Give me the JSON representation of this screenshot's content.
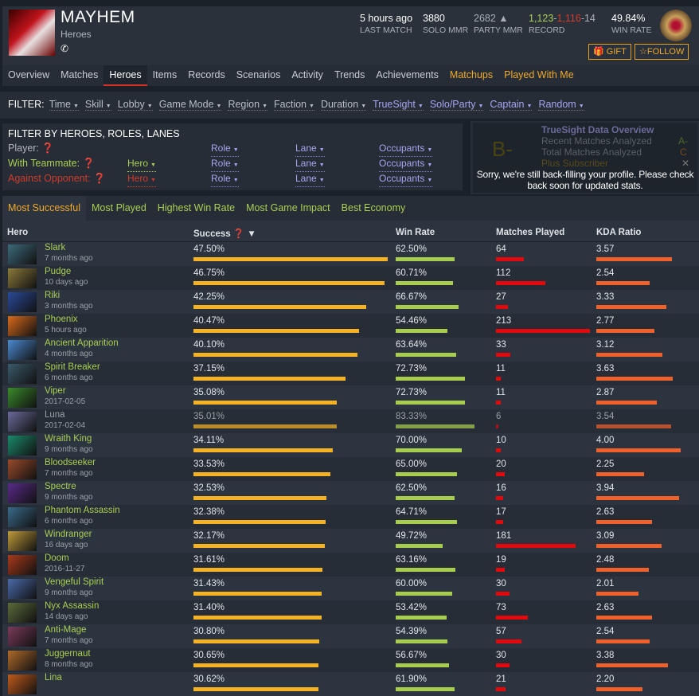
{
  "profile": {
    "name": "MAYHEM",
    "section": "Heroes",
    "phone_icon": "phone-icon"
  },
  "stats": {
    "last_match": "5 hours ago",
    "last_match_label": "LAST MATCH",
    "solo_mmr": "3880",
    "solo_mmr_label": "SOLO MMR",
    "party_mmr": "2682",
    "party_mmr_label": "PARTY MMR",
    "wins": "1,123",
    "losses": "1,116",
    "abandons": "14",
    "record_label": "RECORD",
    "win_rate": "49.84%",
    "win_rate_label": "WIN RATE"
  },
  "buttons": {
    "gift": "GIFT",
    "follow": "FOLLOW"
  },
  "nav": [
    "Overview",
    "Matches",
    "Heroes",
    "Items",
    "Records",
    "Scenarios",
    "Activity",
    "Trends",
    "Achievements",
    "Matchups",
    "Played With Me"
  ],
  "filter": {
    "label": "FILTER:",
    "items": [
      "Time",
      "Skill",
      "Lobby",
      "Game Mode",
      "Region",
      "Faction",
      "Duration",
      "TrueSight",
      "Solo/Party",
      "Captain",
      "Random"
    ]
  },
  "hero_filter": {
    "title": "FILTER BY HEROES, ROLES, LANES",
    "player": "Player:",
    "teammate": "With Teammate:",
    "opponent": "Against Opponent:",
    "hero": "Hero",
    "role": "Role",
    "lane": "Lane",
    "occupants": "Occupants"
  },
  "truesight": {
    "title": "TrueSight Data Overview",
    "grade": "B-",
    "recent": "Recent Matches Analyzed",
    "recent_grade": "A-",
    "total": "Total Matches Analyzed",
    "total_grade": "C",
    "plus": "Plus Subscriber",
    "message": "Sorry, we're still back-filling your profile. Please check back soon for updated stats."
  },
  "tabs": [
    "Most Successful",
    "Most Played",
    "Highest Win Rate",
    "Most Game Impact",
    "Best Economy"
  ],
  "columns": {
    "hero": "Hero",
    "success": "Success",
    "win_rate": "Win Rate",
    "matches": "Matches Played",
    "kda": "KDA Ratio"
  },
  "colors": {
    "success_bar": "#f5b324",
    "winrate_bar": "#a6cd4e",
    "matches_bar": "#e3080c",
    "kda_bar": "#f0602a",
    "hero_link": "#a9cf54",
    "accent": "#f0a92a"
  },
  "heroes": [
    {
      "name": "Slark",
      "last": "7 months ago",
      "success": 47.5,
      "win_rate": 62.5,
      "matches": 64,
      "kda": 3.57,
      "portrait_color": "#3d6a7a"
    },
    {
      "name": "Pudge",
      "last": "10 days ago",
      "success": 46.75,
      "win_rate": 60.71,
      "matches": 112,
      "kda": 2.54,
      "portrait_color": "#8a7a3a"
    },
    {
      "name": "Riki",
      "last": "3 months ago",
      "success": 42.25,
      "win_rate": 66.67,
      "matches": 27,
      "kda": 3.33,
      "portrait_color": "#2a4a9a"
    },
    {
      "name": "Phoenix",
      "last": "5 hours ago",
      "success": 40.47,
      "win_rate": 54.46,
      "matches": 213,
      "kda": 2.77,
      "portrait_color": "#d86a1a"
    },
    {
      "name": "Ancient Apparition",
      "last": "4 months ago",
      "success": 40.1,
      "win_rate": 63.64,
      "matches": 33,
      "kda": 3.12,
      "portrait_color": "#4a8ad0"
    },
    {
      "name": "Spirit Breaker",
      "last": "6 months ago",
      "success": 37.15,
      "win_rate": 72.73,
      "matches": 11,
      "kda": 3.63,
      "portrait_color": "#3a5a6a"
    },
    {
      "name": "Viper",
      "last": "2017-02-05",
      "success": 35.08,
      "win_rate": 72.73,
      "matches": 11,
      "kda": 2.87,
      "portrait_color": "#3a8a2a"
    },
    {
      "name": "Luna",
      "last": "2017-02-04",
      "success": 35.01,
      "win_rate": 83.33,
      "matches": 6,
      "kda": 3.54,
      "portrait_color": "#6a6a9a",
      "dim": true
    },
    {
      "name": "Wraith King",
      "last": "9 months ago",
      "success": 34.11,
      "win_rate": 70.0,
      "matches": 10,
      "kda": 4.0,
      "portrait_color": "#1a8a6a"
    },
    {
      "name": "Bloodseeker",
      "last": "7 months ago",
      "success": 33.53,
      "win_rate": 65.0,
      "matches": 20,
      "kda": 2.25,
      "portrait_color": "#9a4a2a"
    },
    {
      "name": "Spectre",
      "last": "9 months ago",
      "success": 32.53,
      "win_rate": 62.5,
      "matches": 16,
      "kda": 3.94,
      "portrait_color": "#5a2a8a"
    },
    {
      "name": "Phantom Assassin",
      "last": "6 months ago",
      "success": 32.38,
      "win_rate": 64.71,
      "matches": 17,
      "kda": 2.63,
      "portrait_color": "#3a6a8a"
    },
    {
      "name": "Windranger",
      "last": "16 days ago",
      "success": 32.17,
      "win_rate": 49.72,
      "matches": 181,
      "kda": 3.09,
      "portrait_color": "#c09a3a"
    },
    {
      "name": "Doom",
      "last": "2016-11-27",
      "success": 31.61,
      "win_rate": 63.16,
      "matches": 19,
      "kda": 2.48,
      "portrait_color": "#a83a1a"
    },
    {
      "name": "Vengeful Spirit",
      "last": "9 months ago",
      "success": 31.43,
      "win_rate": 60.0,
      "matches": 30,
      "kda": 2.01,
      "portrait_color": "#4a6aaa"
    },
    {
      "name": "Nyx Assassin",
      "last": "14 days ago",
      "success": 31.4,
      "win_rate": 53.42,
      "matches": 73,
      "kda": 2.63,
      "portrait_color": "#5a6a3a"
    },
    {
      "name": "Anti-Mage",
      "last": "7 months ago",
      "success": 30.8,
      "win_rate": 54.39,
      "matches": 57,
      "kda": 2.54,
      "portrait_color": "#7a3a5a"
    },
    {
      "name": "Juggernaut",
      "last": "8 months ago",
      "success": 30.65,
      "win_rate": 56.67,
      "matches": 30,
      "kda": 3.38,
      "portrait_color": "#b06a2a"
    },
    {
      "name": "Lina",
      "last": "",
      "success": 30.62,
      "win_rate": 61.9,
      "matches": 21,
      "kda": 2.2,
      "portrait_color": "#c05a1a"
    }
  ]
}
